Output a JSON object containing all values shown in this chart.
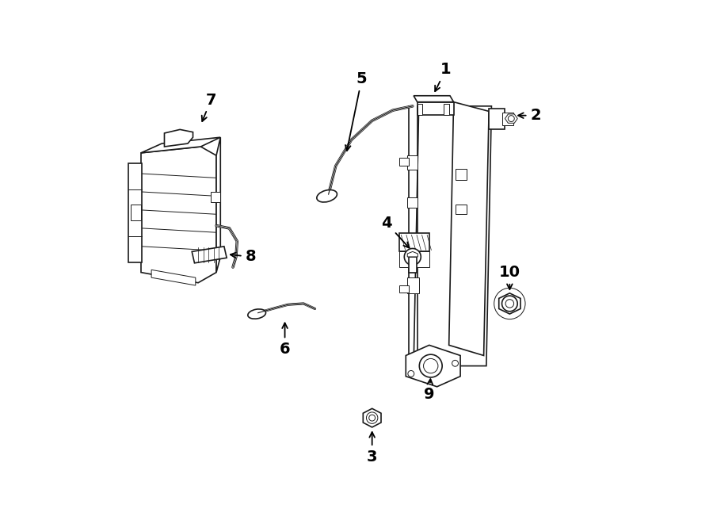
{
  "bg": "#ffffff",
  "lc": "#1a1a1a",
  "figw": 9.0,
  "figh": 6.61,
  "dpi": 100,
  "labels": {
    "1": [
      0.675,
      0.138,
      0.647,
      0.178
    ],
    "2": [
      0.84,
      0.222,
      0.798,
      0.222
    ],
    "3": [
      0.53,
      0.86,
      0.53,
      0.82
    ],
    "4": [
      0.563,
      0.432,
      0.563,
      0.48
    ],
    "5": [
      0.524,
      0.155,
      0.505,
      0.213
    ],
    "6": [
      0.368,
      0.672,
      0.368,
      0.618
    ],
    "7": [
      0.222,
      0.195,
      0.21,
      0.237
    ],
    "8": [
      0.296,
      0.488,
      0.26,
      0.481
    ],
    "9": [
      0.641,
      0.75,
      0.641,
      0.702
    ],
    "10": [
      0.797,
      0.525,
      0.797,
      0.562
    ]
  }
}
